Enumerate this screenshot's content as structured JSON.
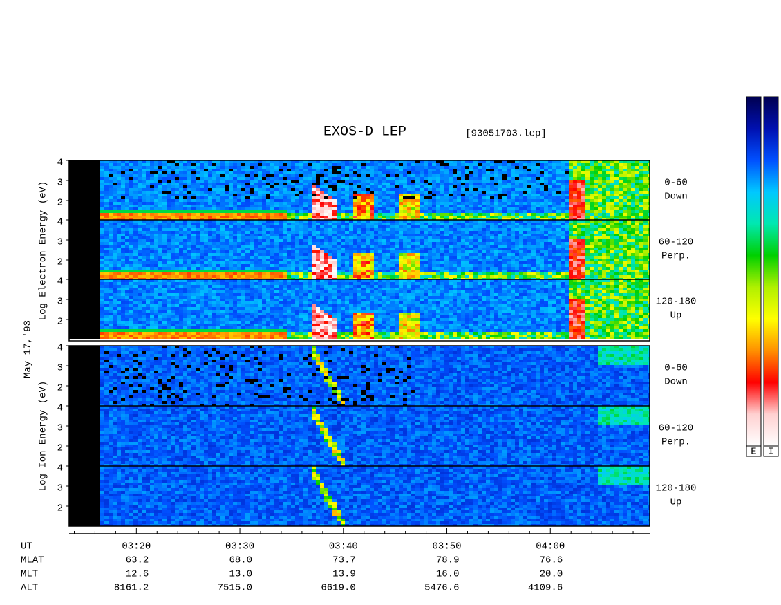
{
  "chart_data": {
    "type": "spectrogram",
    "title": "EXOS-D LEP",
    "file": "[93051703.lep]",
    "date": "May 17,'93",
    "xlim": [
      193.5,
      249.6
    ],
    "xticks": [
      {
        "value": 200,
        "label": "03:20"
      },
      {
        "value": 210,
        "label": "03:30"
      },
      {
        "value": 220,
        "label": "03:40"
      },
      {
        "value": 230,
        "label": "03:50"
      },
      {
        "value": 240,
        "label": "04:00"
      }
    ],
    "xminorticks": [
      194,
      196,
      198,
      202,
      204,
      206,
      208,
      212,
      214,
      216,
      218,
      222,
      224,
      226,
      228,
      232,
      234,
      236,
      238,
      242,
      244,
      246,
      248
    ],
    "ylim": [
      1,
      4
    ],
    "yticks": [
      2,
      3,
      4
    ],
    "groups": [
      {
        "ylabel": "Log Electron Energy (eV)",
        "species": "electron",
        "panels": [
          {
            "angle": "0-60",
            "direction": "Down"
          },
          {
            "angle": "60-120",
            "direction": "Perp."
          },
          {
            "angle": "120-180",
            "direction": "Up"
          }
        ]
      },
      {
        "ylabel": "Log Ion Energy (eV)",
        "species": "ion",
        "panels": [
          {
            "angle": "0-60",
            "direction": "Down"
          },
          {
            "angle": "60-120",
            "direction": "Perp."
          },
          {
            "angle": "120-180",
            "direction": "Up"
          }
        ]
      }
    ],
    "orbit": {
      "label": "UT",
      "rows": [
        {
          "label": "MLAT",
          "values": [
            "63.2",
            "68.0",
            "73.7",
            "78.9",
            "76.6"
          ]
        },
        {
          "label": "MLT",
          "values": [
            "12.6",
            "13.0",
            "13.9",
            "16.0",
            "20.0"
          ]
        },
        {
          "label": "ALT",
          "values": [
            "8161.2",
            "7515.0",
            "6619.0",
            "5476.6",
            "4109.6"
          ]
        }
      ]
    },
    "colormap": [
      "#000050",
      "#0010b0",
      "#0050ff",
      "#00c8ff",
      "#00e8b0",
      "#00d000",
      "#b0f000",
      "#ffff00",
      "#ff9000",
      "#ff0000",
      "#ffd0d0",
      "#ffffff"
    ],
    "colorbar_labels": [
      "E",
      "I"
    ]
  }
}
